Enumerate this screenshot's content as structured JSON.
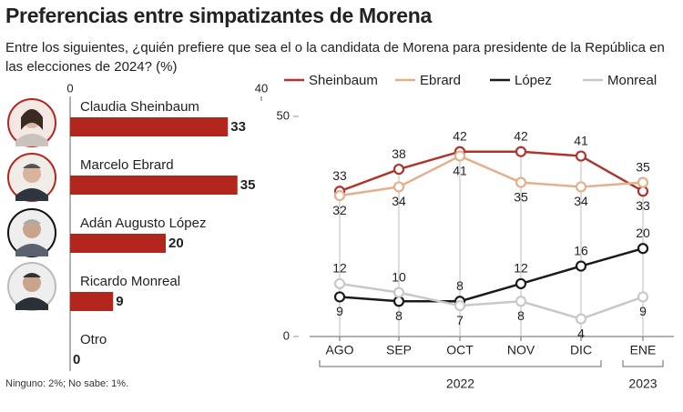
{
  "title": "Preferencias entre simpatizantes de Morena",
  "subtitle": "Entre los siguientes, ¿quién prefiere que sea el o la candidata de Morena para presidente de la República en las elecciones de 2024? (%)",
  "note": "Ninguno: 2%; No sabe: 1%.",
  "chart_data": [
    {
      "type": "hbar",
      "categories": [
        "Claudia Sheinbaum",
        "Marcelo Ebrard",
        "Adán Augusto López",
        "Ricardo Monreal",
        "Otro"
      ],
      "values": [
        33,
        35,
        20,
        9,
        0
      ],
      "color": "#b3261e",
      "xlim": [
        0,
        40
      ],
      "xticks": [
        0,
        40
      ]
    },
    {
      "type": "line",
      "categories": [
        "AGO",
        "SEP",
        "OCT",
        "NOV",
        "DIC",
        "ENE"
      ],
      "x_groups": [
        "2022",
        "2023"
      ],
      "ylim": [
        0,
        50
      ],
      "yticks": [
        0,
        50
      ],
      "series": [
        {
          "name": "Sheinbaum",
          "color": "#b0342b",
          "values": [
            33,
            38,
            42,
            42,
            41,
            33
          ]
        },
        {
          "name": "Ebrard",
          "color": "#e3b08e",
          "values": [
            32,
            34,
            41,
            35,
            34,
            35
          ]
        },
        {
          "name": "López",
          "color": "#1a1a1a",
          "values": [
            9,
            8,
            8,
            12,
            16,
            20
          ]
        },
        {
          "name": "Monreal",
          "color": "#c8c8c8",
          "values": [
            12,
            10,
            7,
            8,
            4,
            9
          ]
        }
      ]
    }
  ]
}
